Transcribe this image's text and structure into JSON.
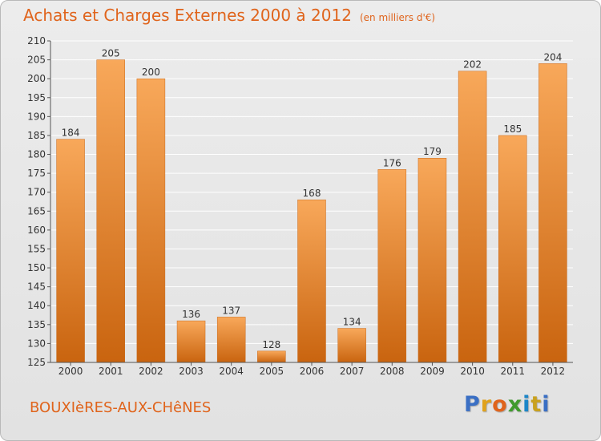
{
  "header": {
    "title": "Achats et Charges Externes 2000 à 2012",
    "subtitle": "(en milliers d'€)"
  },
  "footer": {
    "place": "BOUXIèRES-AUX-CHêNES",
    "logo": {
      "letters": [
        "P",
        "r",
        "o",
        "x",
        "i",
        "t",
        "i"
      ],
      "colors": [
        "#3a6fc4",
        "#e0a21c",
        "#e0641c",
        "#3f9a2d",
        "#1c86c8",
        "#c9a11e",
        "#3a6fc4"
      ]
    }
  },
  "colors": {
    "bar_light": "#f8a85a",
    "bar_dark": "#c9640f",
    "title": "#e0641c",
    "grid": "#ffffff"
  },
  "chart_data": {
    "type": "bar",
    "title": "Achats et Charges Externes 2000 à 2012",
    "subtitle": "(en milliers d'€)",
    "xlabel": "",
    "ylabel": "",
    "categories": [
      "2000",
      "2001",
      "2002",
      "2003",
      "2004",
      "2005",
      "2006",
      "2007",
      "2008",
      "2009",
      "2010",
      "2011",
      "2012"
    ],
    "values": [
      184,
      205,
      200,
      136,
      137,
      128,
      168,
      134,
      176,
      179,
      202,
      185,
      204
    ],
    "ylim": [
      125,
      210
    ],
    "ytick_step": 5,
    "grid": true,
    "legend": "none"
  }
}
